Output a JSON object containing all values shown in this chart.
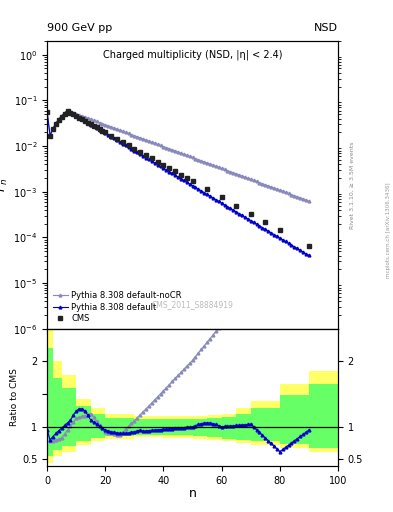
{
  "title_left": "900 GeV pp",
  "title_right": "NSD",
  "plot_title": "Charged multiplicity (NSD, |η| < 2.4)",
  "xlabel": "n",
  "ylabel_main": "P_n",
  "ylabel_ratio": "Ratio to CMS",
  "right_label_main": "Rivet 3.1.10, ≥ 3.5M events",
  "right_label_side": "mcplots.cern.ch [arXiv:1306.3436]",
  "dataset_label": "CMS_2011_S8884919",
  "cms_color": "#222222",
  "py8_color": "#0000cc",
  "py8_nocr_color": "#8888bb",
  "band_yellow": "#ffff66",
  "band_green": "#66ff66",
  "ylim_main": [
    1e-06,
    2.0
  ],
  "ylim_ratio": [
    0.4,
    2.5
  ],
  "xlim": [
    0,
    100
  ],
  "band_x": [
    0,
    1,
    2,
    5,
    10,
    15,
    20,
    30,
    40,
    50,
    55,
    60,
    65,
    70,
    80,
    90,
    100
  ],
  "yellow_lo": [
    0.45,
    0.45,
    0.55,
    0.62,
    0.72,
    0.78,
    0.82,
    0.84,
    0.83,
    0.82,
    0.8,
    0.78,
    0.75,
    0.72,
    0.68,
    0.62,
    0.55
  ],
  "yellow_hi": [
    2.5,
    2.5,
    2.0,
    1.8,
    1.42,
    1.28,
    1.2,
    1.17,
    1.16,
    1.16,
    1.18,
    1.2,
    1.28,
    1.4,
    1.65,
    1.85,
    2.1
  ],
  "green_lo": [
    0.55,
    0.55,
    0.65,
    0.7,
    0.78,
    0.83,
    0.86,
    0.87,
    0.87,
    0.86,
    0.84,
    0.82,
    0.8,
    0.78,
    0.74,
    0.68,
    0.62
  ],
  "green_hi": [
    2.2,
    2.2,
    1.75,
    1.6,
    1.32,
    1.2,
    1.14,
    1.12,
    1.12,
    1.12,
    1.13,
    1.15,
    1.2,
    1.28,
    1.48,
    1.65,
    1.85
  ]
}
